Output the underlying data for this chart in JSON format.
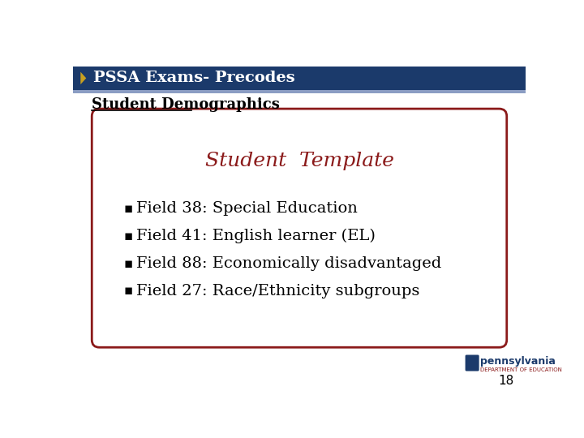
{
  "title_bar_text": "PSSA Exams- Precodes",
  "title_bar_color": "#1B3A6B",
  "title_bar_text_color": "#FFFFFF",
  "accent_bar_color": "#8B9DC3",
  "section_header": "Student Demographics",
  "section_header_color": "#000000",
  "box_title": "Student  Template",
  "box_title_color": "#8B1A1A",
  "box_border_color": "#8B1A1A",
  "box_fill_color": "#FFFFFF",
  "bullet_items": [
    "Field 38: Special Education",
    "Field 41: English learner (EL)",
    "Field 88: Economically disadvantaged",
    "Field 27: Race/Ethnicity subgroups"
  ],
  "bullet_color": "#000000",
  "page_number": "18",
  "bg_color": "#FFFFFF",
  "arrow_color": "#C8A020"
}
